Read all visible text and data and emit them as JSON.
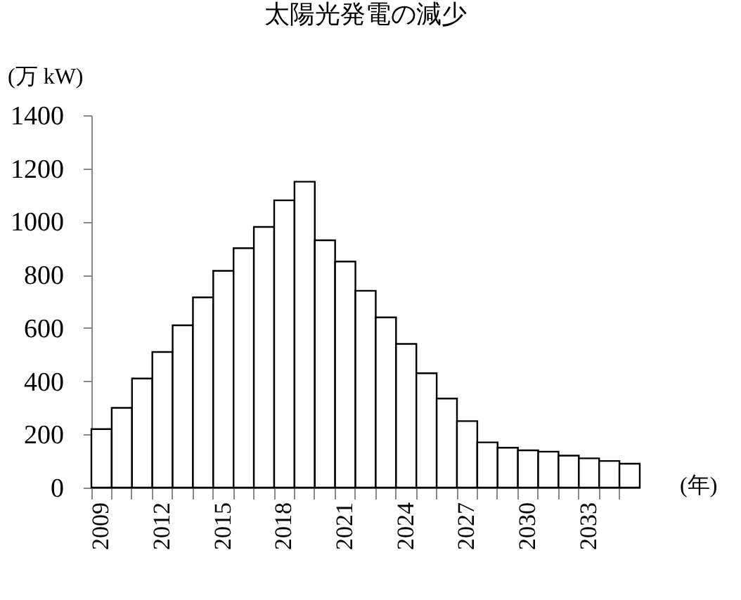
{
  "chart_data": {
    "type": "bar",
    "title": "太陽光発電の減少",
    "ylabel": "(万 kW)",
    "xlabel": "(年)",
    "categories": [
      "2009",
      null,
      null,
      "2012",
      null,
      null,
      "2015",
      null,
      null,
      "2018",
      null,
      null,
      "2021",
      null,
      null,
      "2024",
      null,
      null,
      "2027",
      null,
      null,
      "2030",
      null,
      null,
      "2033",
      null,
      null
    ],
    "values": [
      220,
      300,
      410,
      510,
      610,
      715,
      815,
      900,
      980,
      1080,
      1150,
      930,
      850,
      740,
      640,
      540,
      430,
      335,
      250,
      170,
      150,
      140,
      135,
      120,
      110,
      100,
      90
    ],
    "color": "#ffffff",
    "ylim": [
      0,
      1400
    ],
    "yticks": [
      0,
      200,
      400,
      600,
      800,
      1000,
      1200,
      1400
    ],
    "grid": false
  }
}
